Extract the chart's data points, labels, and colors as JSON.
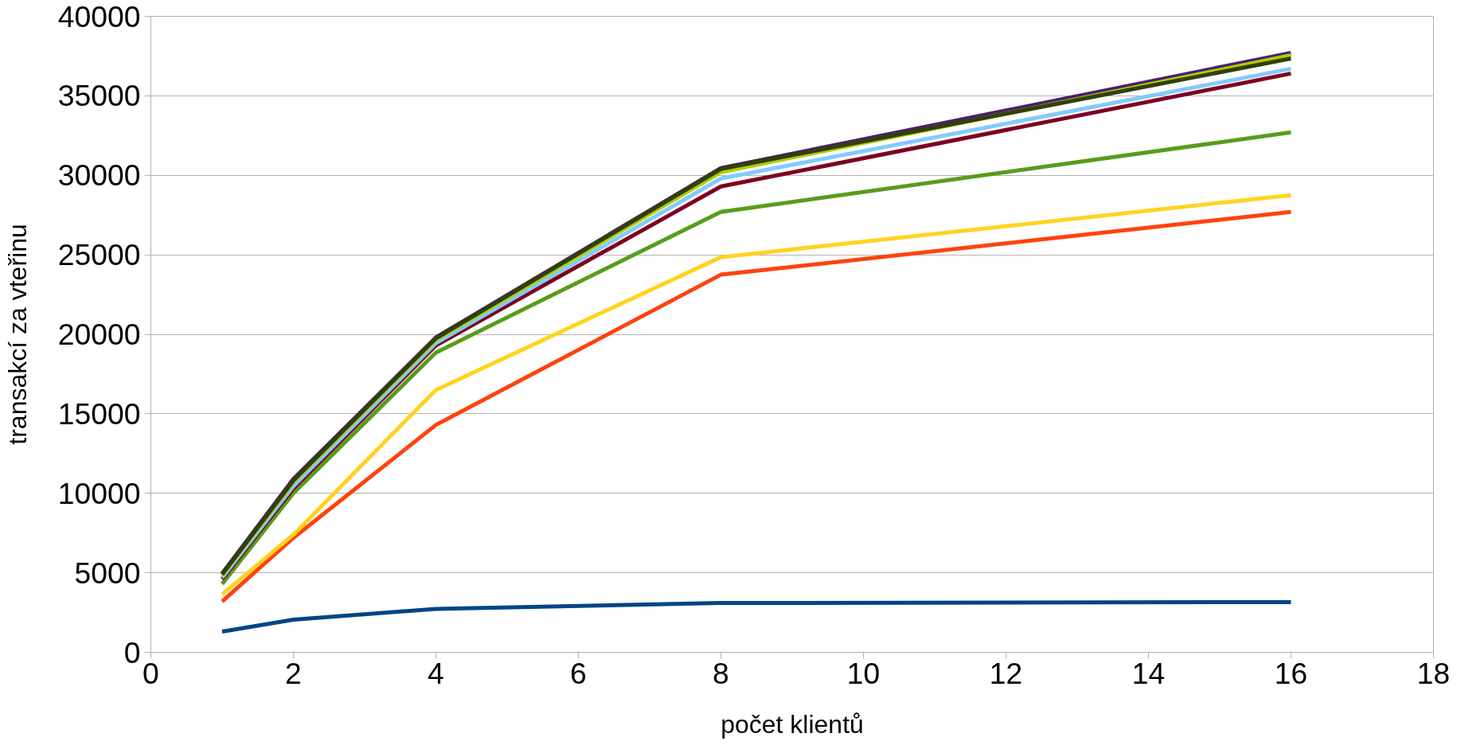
{
  "chart_data": {
    "type": "line",
    "xlabel": "počet klientů",
    "ylabel": "transakcí za vteřinu",
    "x": [
      1,
      2,
      4,
      8,
      16
    ],
    "xlim": [
      0,
      18
    ],
    "xticks": [
      0,
      2,
      4,
      6,
      8,
      10,
      12,
      14,
      16,
      18
    ],
    "ylim": [
      0,
      40000
    ],
    "yticks": [
      0,
      5000,
      10000,
      15000,
      20000,
      25000,
      30000,
      35000,
      40000
    ],
    "grid": "y",
    "marker": "none",
    "line_style": "solid",
    "series": [
      {
        "color": "#004586",
        "values": [
          1300,
          2050,
          2730,
          3100,
          3160
        ]
      },
      {
        "color": "#ff420e",
        "values": [
          3200,
          7200,
          14300,
          23750,
          27700
        ]
      },
      {
        "color": "#ffd320",
        "values": [
          3650,
          7400,
          16500,
          24850,
          28750
        ]
      },
      {
        "color": "#579d1c",
        "values": [
          4300,
          10000,
          18850,
          27700,
          32700
        ]
      },
      {
        "color": "#7e0021",
        "values": [
          4600,
          10300,
          19300,
          29300,
          36400
        ]
      },
      {
        "color": "#83caff",
        "values": [
          4700,
          10450,
          19450,
          29800,
          36700
        ]
      },
      {
        "color": "#4b1f6f",
        "values": [
          4950,
          10900,
          19800,
          30450,
          37700
        ]
      },
      {
        "color": "#aecf00",
        "values": [
          4850,
          10700,
          19650,
          30200,
          37550
        ]
      },
      {
        "color": "#314004",
        "values": [
          4900,
          10800,
          19750,
          30400,
          37350
        ]
      }
    ]
  }
}
